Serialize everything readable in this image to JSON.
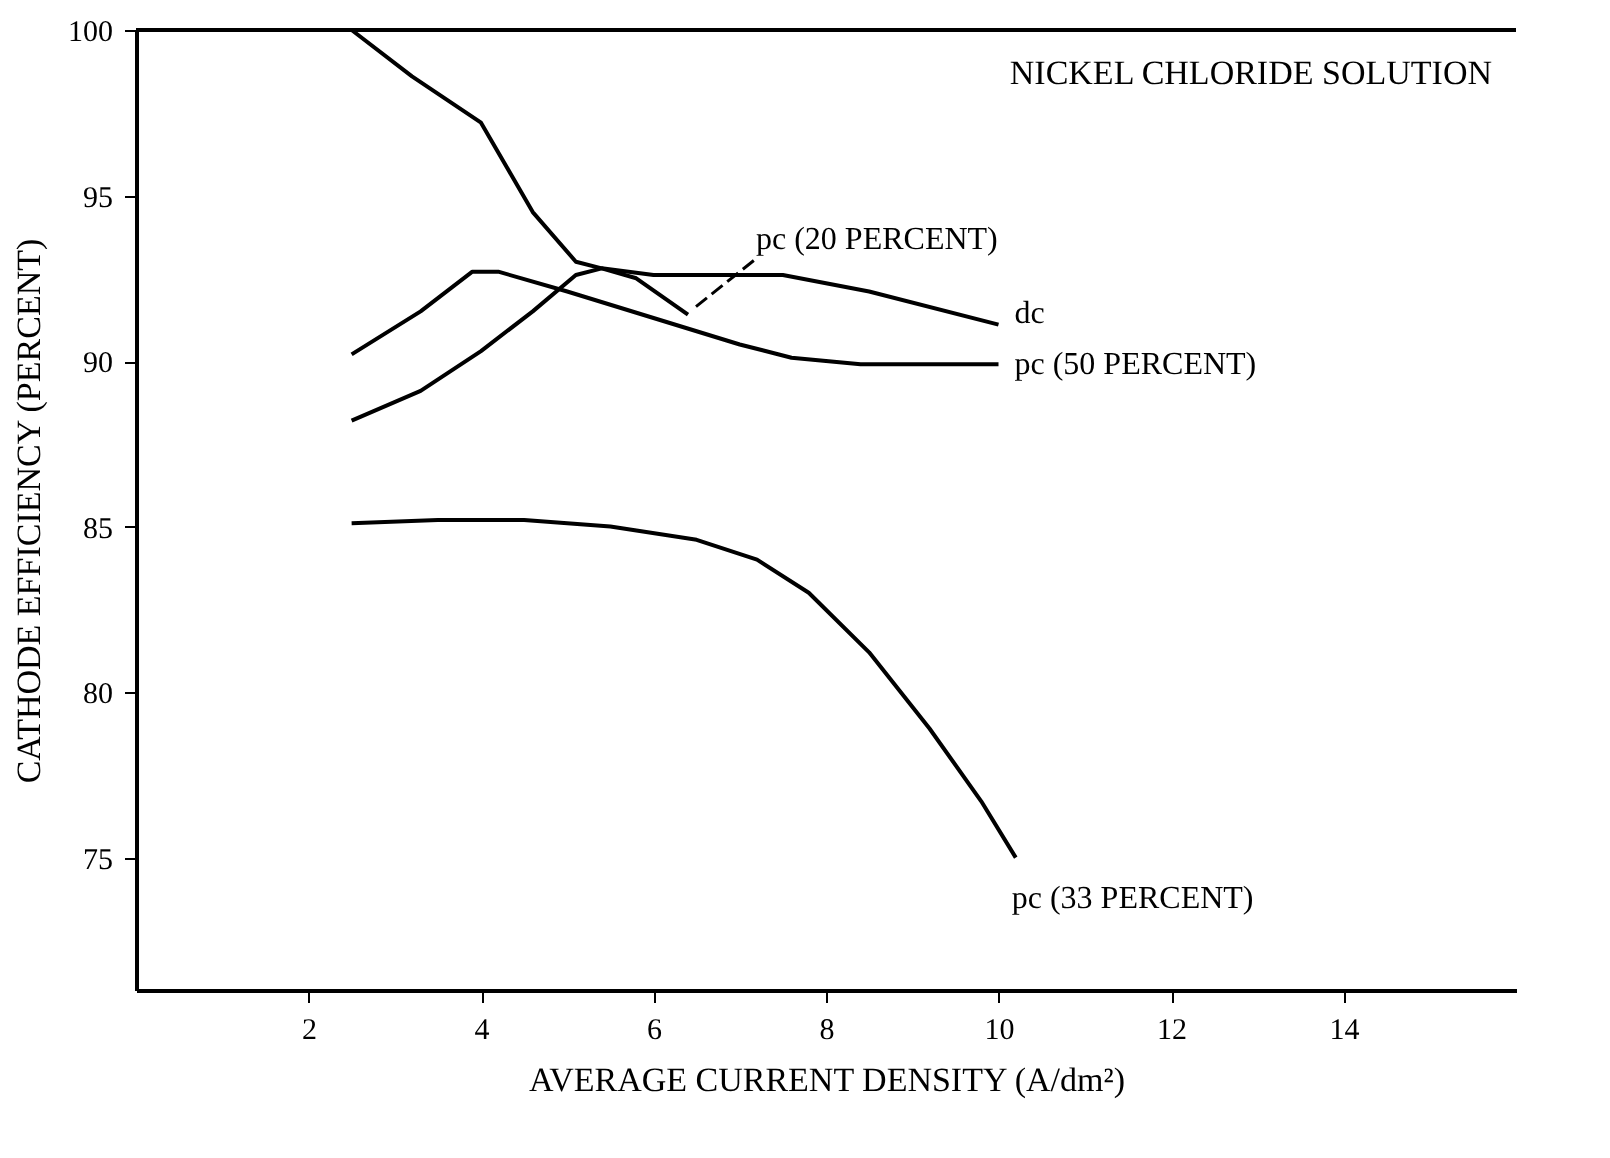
{
  "chart_data": {
    "type": "line",
    "xlabel": "AVERAGE CURRENT DENSITY (A/dm²)",
    "ylabel": "CATHODE EFFICIENCY (PERCENT)",
    "annotations": [
      "NICKEL CHLORIDE SOLUTION"
    ],
    "xlim": [
      0,
      16
    ],
    "xticks": [
      2,
      4,
      6,
      8,
      10,
      12,
      14
    ],
    "ylim": [
      71,
      100
    ],
    "yticks": [
      75,
      80,
      85,
      90,
      95,
      100
    ],
    "grid": false,
    "marker": "none",
    "line_style": "solid",
    "series": [
      {
        "name": "dc",
        "color": "#000000",
        "x": [
          2.5,
          3.2,
          4.0,
          4.6,
          5.1,
          5.4,
          6.0,
          7.5,
          8.5,
          10.0
        ],
        "values": [
          100,
          98.6,
          97.2,
          94.5,
          93.0,
          92.8,
          92.6,
          92.6,
          92.1,
          91.1
        ]
      },
      {
        "name": "pc (20 PERCENT)",
        "color": "#000000",
        "x": [
          2.5,
          3.3,
          4.0,
          4.6,
          5.1,
          5.4,
          5.8,
          6.4
        ],
        "values": [
          88.2,
          89.1,
          90.3,
          91.5,
          92.6,
          92.8,
          92.5,
          91.4
        ]
      },
      {
        "name": "pc (50 PERCENT)",
        "color": "#000000",
        "x": [
          2.5,
          3.3,
          3.9,
          4.2,
          5.0,
          6.0,
          7.0,
          7.6,
          8.4,
          10.0
        ],
        "values": [
          90.2,
          91.5,
          92.7,
          92.7,
          92.1,
          91.3,
          90.5,
          90.1,
          89.9,
          89.9
        ]
      },
      {
        "name": "pc (33 PERCENT)",
        "color": "#000000",
        "x": [
          2.5,
          3.5,
          4.5,
          5.5,
          6.5,
          7.2,
          7.8,
          8.5,
          9.2,
          9.8,
          10.2
        ],
        "values": [
          85.1,
          85.2,
          85.2,
          85.0,
          84.6,
          84.0,
          83.0,
          81.2,
          78.9,
          76.7,
          75.0
        ]
      }
    ]
  }
}
